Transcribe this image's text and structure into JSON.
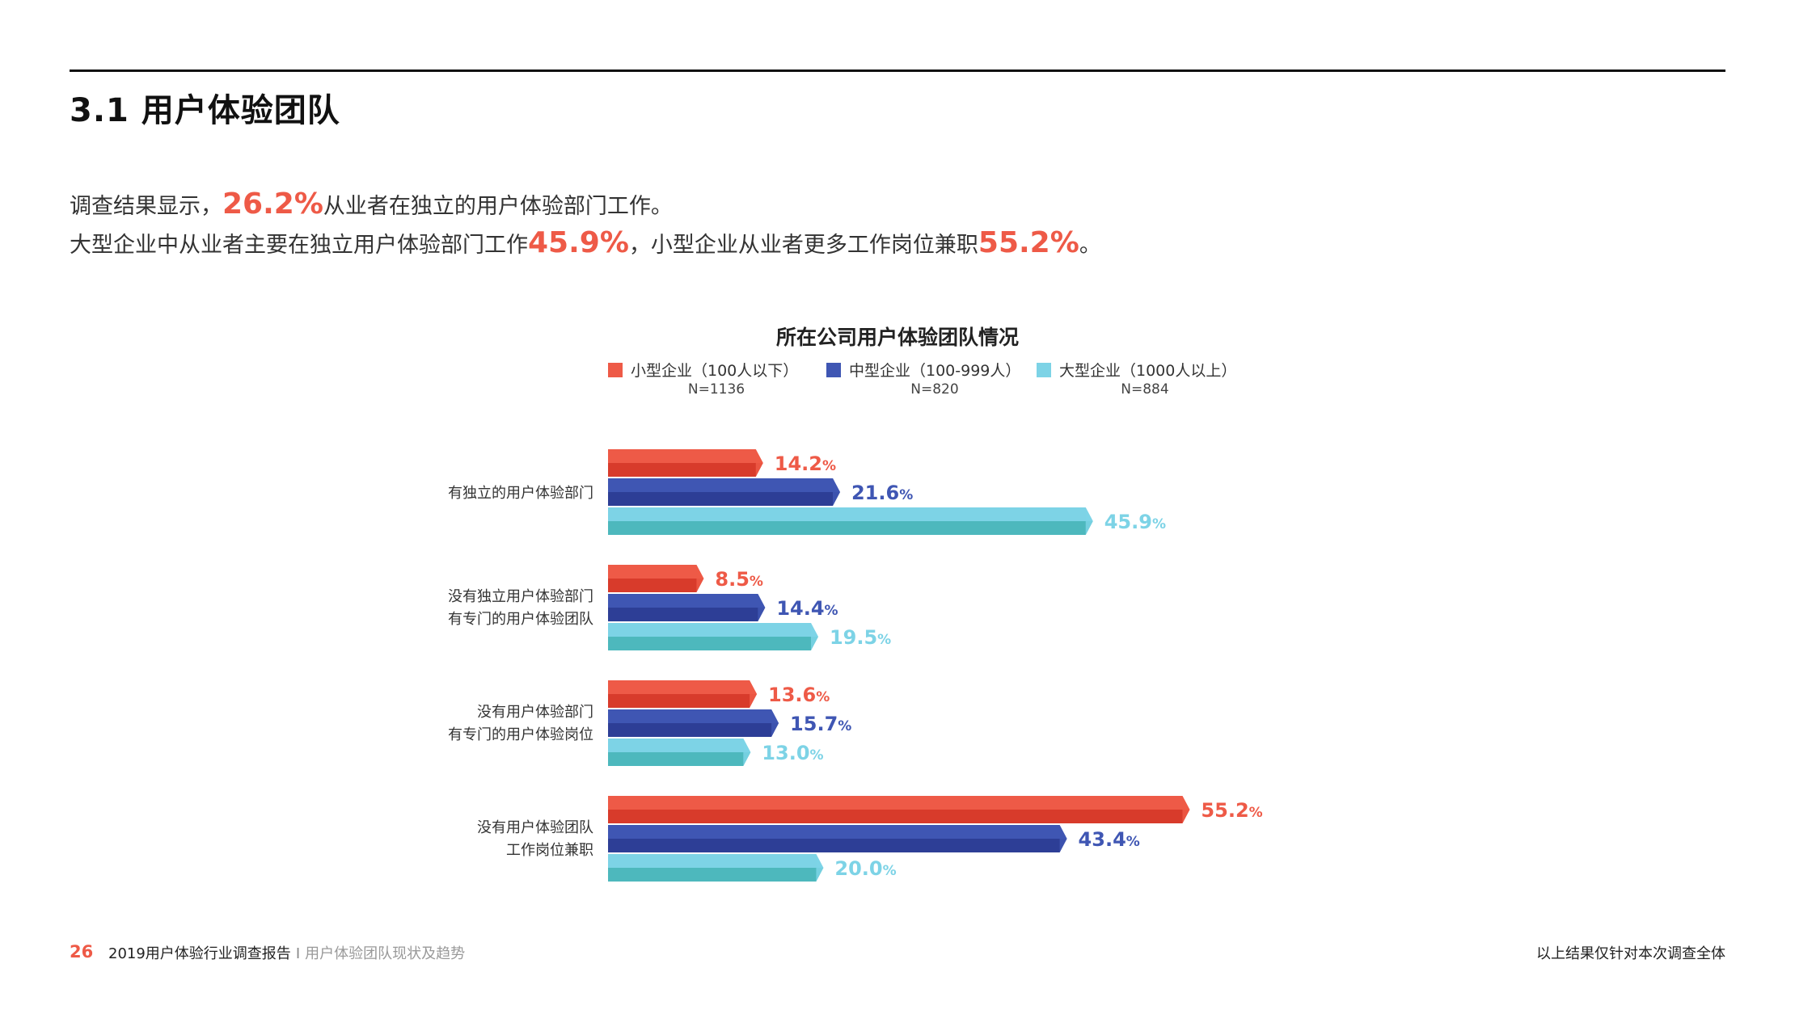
{
  "section_title": "3.1 用户体验团队",
  "summary": {
    "line1_pre": "调查结果显示，",
    "line1_pct": "26.2%",
    "line1_post": "从业者在独立的用户体验部门工作。",
    "line2_pre": "大型企业中从业者主要在独立用户体验部门工作",
    "line2_pct1": "45.9%",
    "line2_mid": "，小型企业从业者更多工作岗位兼职",
    "line2_pct2": "55.2%",
    "line2_post": "。"
  },
  "chart_data": {
    "type": "bar",
    "orientation": "horizontal",
    "title": "所在公司用户体验团队情况",
    "unit": "%",
    "xlim": [
      0,
      60
    ],
    "categories": [
      [
        "有独立的用户体验部门"
      ],
      [
        "没有独立用户体验部门",
        "有专门的用户体验团队"
      ],
      [
        "没有用户体验部门",
        "有专门的用户体验岗位"
      ],
      [
        "没有用户体验团队",
        "工作岗位兼职"
      ]
    ],
    "series": [
      {
        "name": "小型企业（100人以下）",
        "n": "N=1136",
        "color": "#ee5a47",
        "values": [
          14.2,
          8.5,
          13.6,
          55.2
        ]
      },
      {
        "name": "中型企业（100-999人）",
        "n": "N=820",
        "color": "#3f56b3",
        "values": [
          21.6,
          14.4,
          15.7,
          43.4
        ]
      },
      {
        "name": "大型企业（1000人以上）",
        "n": "N=884",
        "color": "#7dd3e6",
        "values": [
          45.9,
          19.5,
          13.0,
          20.0
        ]
      }
    ]
  },
  "footer": {
    "page_number": "26",
    "report_title": "2019用户体验行业调查报告",
    "separator": "I",
    "section": "用户体验团队现状及趋势",
    "note": "以上结果仅针对本次调查全体"
  }
}
